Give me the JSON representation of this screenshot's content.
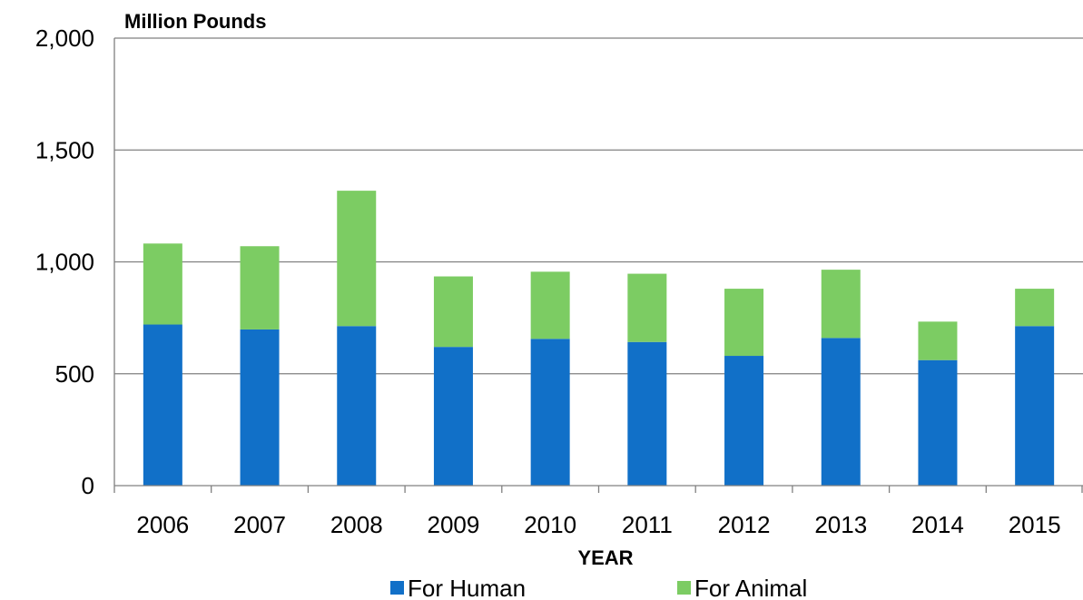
{
  "chart_data": {
    "type": "bar",
    "stacked": true,
    "title": "",
    "ylabel": "Million Pounds",
    "xlabel": "YEAR",
    "ylim": [
      0,
      2000
    ],
    "yticks": [
      "0",
      "500",
      "1,000",
      "1,500",
      "2,000"
    ],
    "ytick_values": [
      0,
      500,
      1000,
      1500,
      2000
    ],
    "categories": [
      "2006",
      "2007",
      "2008",
      "2009",
      "2010",
      "2011",
      "2012",
      "2013",
      "2014",
      "2015"
    ],
    "series": [
      {
        "name": "For Human",
        "color": "#1170c8",
        "values": [
          720,
          698,
          713,
          620,
          656,
          642,
          580,
          660,
          561,
          713
        ]
      },
      {
        "name": "For Animal",
        "color": "#7ccc63",
        "values": [
          362,
          372,
          605,
          315,
          300,
          305,
          300,
          305,
          172,
          167
        ]
      }
    ],
    "grid": true,
    "legend_position": "bottom"
  }
}
